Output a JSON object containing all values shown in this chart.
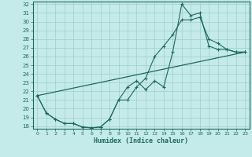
{
  "xlabel": "Humidex (Indice chaleur)",
  "bg_color": "#c5eaea",
  "line_color": "#1a6b5a",
  "grid_color": "#9ecece",
  "xlim": [
    0,
    23
  ],
  "ylim": [
    18,
    32
  ],
  "yticks": [
    18,
    19,
    20,
    21,
    22,
    23,
    24,
    25,
    26,
    27,
    28,
    29,
    30,
    31,
    32
  ],
  "xticks": [
    0,
    1,
    2,
    3,
    4,
    5,
    6,
    7,
    8,
    9,
    10,
    11,
    12,
    13,
    14,
    15,
    16,
    17,
    18,
    19,
    20,
    21,
    22,
    23
  ],
  "line1_x": [
    0,
    1,
    2,
    3,
    4,
    5,
    6,
    7,
    8,
    9,
    10,
    11,
    12,
    13,
    14,
    15,
    16,
    17,
    18,
    19,
    20,
    21,
    22,
    23
  ],
  "line1_y": [
    21.5,
    19.5,
    18.8,
    18.3,
    18.3,
    17.9,
    17.8,
    17.9,
    18.8,
    21.0,
    22.5,
    23.2,
    22.2,
    23.2,
    22.5,
    26.5,
    32.0,
    30.7,
    31.0,
    27.2,
    26.8,
    26.8,
    26.5,
    26.5
  ],
  "line2_x": [
    0,
    1,
    2,
    3,
    4,
    5,
    6,
    7,
    8,
    9,
    10,
    11,
    12,
    13,
    14,
    15,
    16,
    17,
    18,
    19,
    20,
    21,
    22,
    23
  ],
  "line2_y": [
    21.5,
    19.5,
    18.8,
    18.3,
    18.3,
    17.9,
    17.8,
    17.9,
    18.8,
    21.0,
    21.0,
    22.5,
    23.5,
    26.0,
    27.2,
    28.5,
    30.2,
    30.2,
    30.5,
    28.0,
    27.5,
    26.8,
    26.5,
    26.5
  ],
  "line3_x": [
    0,
    23
  ],
  "line3_y": [
    21.5,
    26.5
  ],
  "xlabel_fontsize": 6,
  "tick_fontsize": 5.5
}
